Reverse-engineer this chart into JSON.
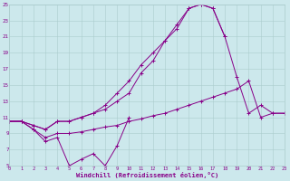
{
  "xlabel": "Windchill (Refroidissement éolien,°C)",
  "bg_color": "#cce8ec",
  "grid_color": "#aacccc",
  "line_color": "#880088",
  "xlim": [
    0,
    23
  ],
  "ylim": [
    5,
    25
  ],
  "yticks": [
    5,
    7,
    9,
    11,
    13,
    15,
    17,
    19,
    21,
    23,
    25
  ],
  "xticks": [
    0,
    1,
    2,
    3,
    4,
    5,
    6,
    7,
    8,
    9,
    10,
    11,
    12,
    13,
    14,
    15,
    16,
    17,
    18,
    19,
    20,
    21,
    22,
    23
  ],
  "series": [
    {
      "x": [
        0,
        1,
        2,
        3,
        4,
        5,
        6,
        7,
        8,
        9,
        10
      ],
      "y": [
        10.5,
        10.5,
        9.5,
        8.0,
        8.5,
        5.0,
        5.8,
        6.5,
        5.0,
        7.5,
        11.0
      ]
    },
    {
      "x": [
        0,
        1,
        2,
        3,
        4,
        5,
        6,
        7,
        8,
        9,
        10,
        11,
        12,
        13,
        14,
        15,
        16,
        17,
        18,
        19,
        20,
        21,
        22,
        23
      ],
      "y": [
        10.5,
        10.5,
        9.5,
        8.5,
        9.0,
        9.0,
        9.2,
        9.5,
        9.8,
        10.0,
        10.5,
        10.8,
        11.2,
        11.5,
        12.0,
        12.5,
        13.0,
        13.5,
        14.0,
        14.5,
        15.5,
        11.0,
        11.5,
        11.5
      ]
    },
    {
      "x": [
        0,
        1,
        2,
        3,
        4,
        5,
        6,
        7,
        8,
        9,
        10,
        11,
        12,
        13,
        14,
        15,
        16,
        17,
        18
      ],
      "y": [
        10.5,
        10.5,
        10.0,
        9.5,
        10.5,
        10.5,
        11.0,
        11.5,
        12.0,
        13.0,
        14.0,
        16.5,
        18.0,
        20.5,
        22.5,
        24.5,
        25.0,
        24.5,
        21.0
      ]
    },
    {
      "x": [
        0,
        1,
        2,
        3,
        4,
        5,
        6,
        7,
        8,
        9,
        10,
        11,
        12,
        13,
        14,
        15,
        16,
        17,
        18,
        19,
        20,
        21,
        22,
        23
      ],
      "y": [
        10.5,
        10.5,
        10.0,
        9.5,
        10.5,
        10.5,
        11.0,
        11.5,
        12.5,
        14.0,
        15.5,
        17.5,
        19.0,
        20.5,
        22.0,
        24.5,
        25.0,
        24.5,
        21.0,
        16.0,
        11.5,
        12.5,
        11.5,
        11.5
      ]
    }
  ]
}
